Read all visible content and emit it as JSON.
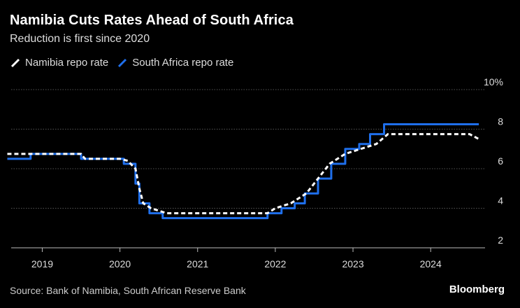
{
  "chart_data": {
    "type": "line",
    "title": "Namibia Cuts Rates Ahead of South Africa",
    "subtitle": "Reduction is first since 2020",
    "source": "Source: Bank of Namibia, South African Reserve Bank",
    "brand": "Bloomberg",
    "xlim": [
      2018.6,
      2024.7
    ],
    "ylim": [
      2,
      10
    ],
    "x_ticks": [
      2019,
      2020,
      2021,
      2022,
      2023,
      2024
    ],
    "x_tick_labels": [
      "2019",
      "2020",
      "2021",
      "2022",
      "2023",
      "2024"
    ],
    "y_ticks": [
      2,
      4,
      6,
      8,
      10
    ],
    "y_tick_labels": [
      "2",
      "4",
      "6",
      "8",
      "10%"
    ],
    "grid": "horizontal",
    "legend_position": "top-left",
    "series": [
      {
        "name": "Namibia repo rate",
        "color": "#ffffff",
        "style": "dashed",
        "step": false,
        "x": [
          2018.55,
          2019.5,
          2019.55,
          2020.0,
          2020.1,
          2020.2,
          2020.25,
          2020.3,
          2020.4,
          2020.6,
          2021.0,
          2021.5,
          2021.9,
          2022.0,
          2022.2,
          2022.4,
          2022.55,
          2022.7,
          2022.9,
          2023.1,
          2023.3,
          2023.45,
          2023.8,
          2024.3,
          2024.5,
          2024.62
        ],
        "values": [
          6.75,
          6.75,
          6.5,
          6.5,
          6.4,
          6.0,
          5.0,
          4.25,
          4.0,
          3.75,
          3.75,
          3.75,
          3.75,
          4.0,
          4.25,
          4.75,
          5.5,
          6.25,
          6.75,
          7.0,
          7.25,
          7.75,
          7.75,
          7.75,
          7.75,
          7.5
        ]
      },
      {
        "name": "South Africa repo rate",
        "color": "#1f6feb",
        "style": "solid",
        "step": true,
        "x": [
          2018.55,
          2018.85,
          2019.5,
          2020.05,
          2020.2,
          2020.25,
          2020.38,
          2020.55,
          2021.9,
          2022.08,
          2022.25,
          2022.38,
          2022.55,
          2022.72,
          2022.9,
          2023.08,
          2023.22,
          2023.4,
          2024.62
        ],
        "values": [
          6.5,
          6.75,
          6.5,
          6.25,
          5.25,
          4.25,
          3.75,
          3.5,
          3.75,
          4.0,
          4.25,
          4.75,
          5.5,
          6.25,
          7.0,
          7.25,
          7.75,
          8.25,
          8.25
        ]
      }
    ]
  }
}
